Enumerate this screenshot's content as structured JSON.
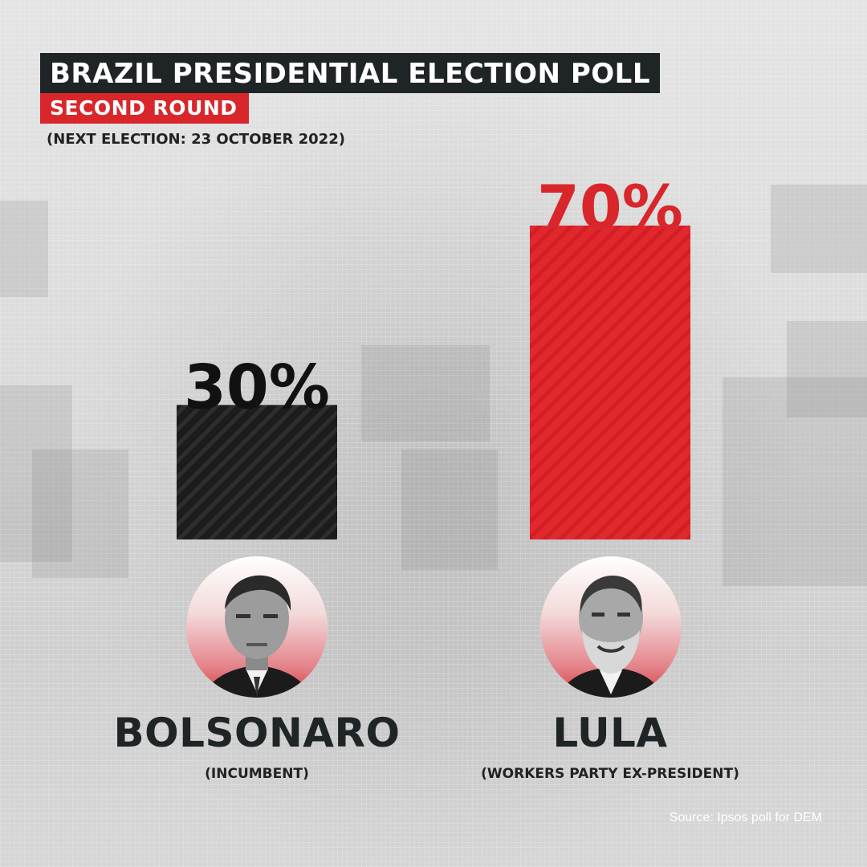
{
  "header": {
    "title": "BRAZIL PRESIDENTIAL ELECTION POLL",
    "subtitle": "SECOND ROUND",
    "note": "(NEXT ELECTION: 23 OCTOBER 2022)"
  },
  "chart_data": {
    "type": "bar",
    "categories": [
      "BOLSONARO",
      "LULA"
    ],
    "values": [
      30,
      70
    ],
    "value_labels": [
      "30%",
      "70%"
    ],
    "descriptions": [
      "(INCUMBENT)",
      "(WORKERS PARTY EX-PRESIDENT)"
    ],
    "colors": [
      "#1c1c1c",
      "#e0282d"
    ],
    "label_colors": [
      "#111111",
      "#d9262b"
    ],
    "ylim": [
      0,
      70
    ],
    "grid": false
  },
  "candidates": [
    {
      "name": "BOLSONARO",
      "description": "(INCUMBENT)",
      "photo": "bolsonaro-portrait"
    },
    {
      "name": "LULA",
      "description": "(WORKERS PARTY EX-PRESIDENT)",
      "photo": "lula-portrait"
    }
  ],
  "source": "Source: Ipsos poll for DEM"
}
